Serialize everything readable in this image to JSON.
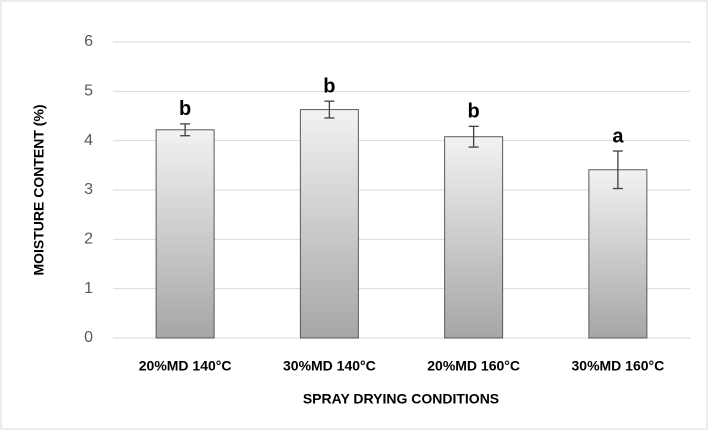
{
  "chart_data": {
    "type": "bar",
    "x_label": "SPRAY DRYING CONDITIONS",
    "y_label": "MOISTURE CONTENT (%)",
    "categories": [
      "20%MD 140°C",
      "30%MD 140°C",
      "20%MD 160°C",
      "30%MD 160°C"
    ],
    "values": [
      4.22,
      4.63,
      4.08,
      3.41
    ],
    "errors": [
      0.12,
      0.17,
      0.21,
      0.38
    ],
    "annotations": [
      "b",
      "b",
      "b",
      "a"
    ],
    "color": "#d9d9d9",
    "ylim": [
      0,
      6
    ],
    "yticks": [
      0,
      1,
      2,
      3,
      4,
      5,
      6
    ],
    "grid": true
  }
}
